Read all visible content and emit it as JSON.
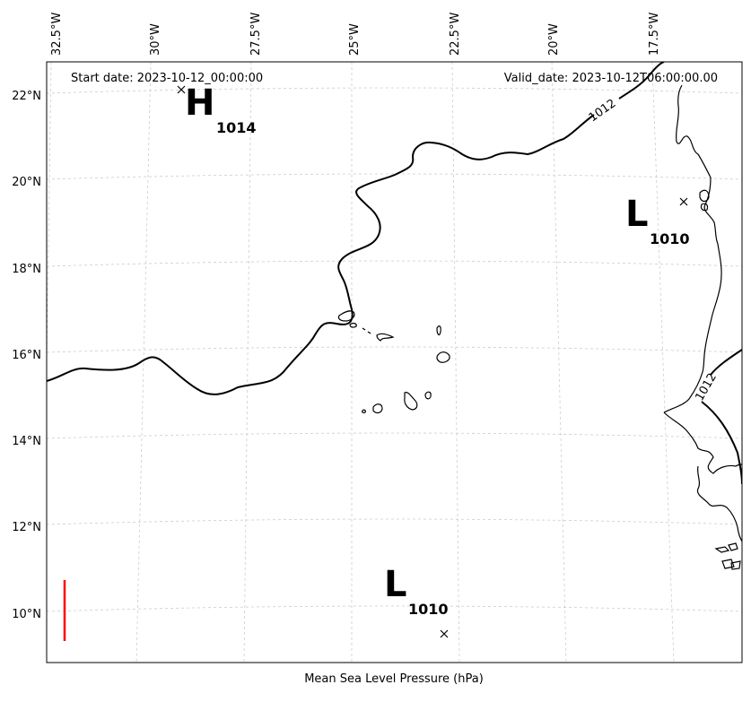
{
  "header": {
    "start_date": "Start date: 2023-10-12_00:00:00",
    "valid_date": "Valid_date: 2023-10-12T06:00:00.00"
  },
  "caption": "Mean Sea Level Pressure (hPa)",
  "axes": {
    "lon_labels": [
      "32.5°W",
      "30°W",
      "27.5°W",
      "25°W",
      "22.5°W",
      "20°W",
      "17.5°W"
    ],
    "lat_labels": [
      "22°N",
      "20°N",
      "18°N",
      "16°N",
      "14°N",
      "12°N",
      "10°N"
    ]
  },
  "pressure_centers": [
    {
      "letter": "H",
      "value": "1014"
    },
    {
      "letter": "L",
      "value": "1010"
    },
    {
      "letter": "L",
      "value": "1010"
    }
  ],
  "contour_labels": [
    "1012",
    "1012"
  ],
  "colors": {
    "contour": "#000000",
    "coast": "#000000",
    "grid": "#cccccc",
    "colorbar": "#ff0000"
  }
}
